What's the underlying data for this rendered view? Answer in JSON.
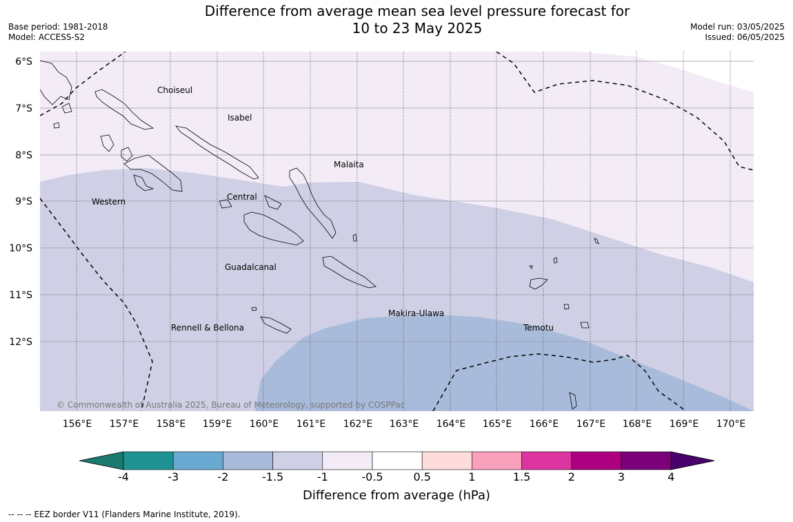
{
  "title_line1": "Difference from average mean sea level pressure forecast for",
  "title_line2": "10 to 23 May 2025",
  "base_period": "Base period: 1981-2018",
  "model": "Model: ACCESS-S2",
  "model_run": "Model run: 03/05/2025",
  "issued": "Issued: 06/05/2025",
  "copyright": "© Commonwealth of Australia 2025, Bureau of Meteorology, supported by COSPPac",
  "footnote": "--  --  -- EEZ border V11 (Flanders Marine Institute, 2019).",
  "map": {
    "lat_labels": [
      "6°S",
      "7°S",
      "8°S",
      "9°S",
      "10°S",
      "11°S",
      "12°S"
    ],
    "lon_labels": [
      "156°E",
      "157°E",
      "158°E",
      "159°E",
      "160°E",
      "161°E",
      "162°E",
      "163°E",
      "164°E",
      "165°E",
      "166°E",
      "167°E",
      "168°E",
      "169°E",
      "170°E"
    ],
    "regions": [
      "Choiseul",
      "Isabel",
      "Malaita",
      "Western",
      "Central",
      "Guadalcanal",
      "Makira-Ulawa",
      "Rennell & Bellona",
      "Temotu"
    ]
  },
  "colorbar": {
    "title": "Difference from average (hPa)",
    "tick_labels": [
      "-4",
      "-3",
      "-2",
      "-1.5",
      "-1",
      "-0.5",
      "0.5",
      "1",
      "1.5",
      "2",
      "3",
      "4"
    ],
    "colors": [
      "#1a7a6e",
      "#1f9393",
      "#6aaad2",
      "#a9bbda",
      "#cfd0e5",
      "#f3ecf6",
      "#ffffff",
      "#fddcdb",
      "#f8a0bc",
      "#dc35a0",
      "#ad0080",
      "#7a0179",
      "#48006a"
    ]
  }
}
